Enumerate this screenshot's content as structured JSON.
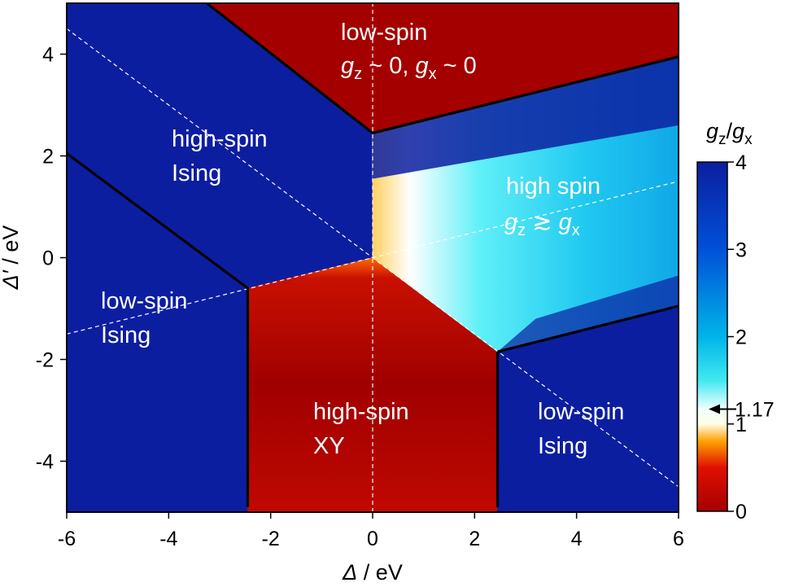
{
  "chart_data": {
    "type": "heatmap",
    "xlabel": {
      "symbol": "Δ",
      "unit": " / eV"
    },
    "ylabel": {
      "symbol": "Δ′",
      "unit": " / eV"
    },
    "xlim": [
      -6,
      6
    ],
    "ylim": [
      -5,
      5
    ],
    "x_ticks": [
      -6,
      -4,
      -2,
      0,
      2,
      4,
      6
    ],
    "x_tick_labels": [
      "-6",
      "-4",
      "-2",
      "0",
      "2",
      "4",
      "6"
    ],
    "y_ticks": [
      -4,
      -2,
      0,
      2,
      4
    ],
    "y_tick_labels": [
      "-4",
      "-2",
      "0",
      "2",
      "4"
    ],
    "colorbar": {
      "title": {
        "numerator": "g",
        "numerator_sub": "z",
        "slash": "/",
        "denominator": "g",
        "denominator_sub": "x"
      },
      "range": [
        0,
        4
      ],
      "ticks": [
        0,
        1,
        2,
        3,
        4
      ],
      "tick_labels": [
        "0",
        "1",
        "2",
        "3",
        "4"
      ],
      "marker": {
        "value": 1.17,
        "label": "1.17"
      },
      "colors": [
        {
          "value": 0.0,
          "color": "#a50000"
        },
        {
          "value": 0.5,
          "color": "#e01000"
        },
        {
          "value": 0.8,
          "color": "#ffa000"
        },
        {
          "value": 1.0,
          "color": "#ffffe6"
        },
        {
          "value": 1.17,
          "color": "#f0ffff"
        },
        {
          "value": 1.5,
          "color": "#40e8f0"
        },
        {
          "value": 2.0,
          "color": "#00b4e8"
        },
        {
          "value": 3.0,
          "color": "#0050d8"
        },
        {
          "value": 4.0,
          "color": "#0c1ea0"
        }
      ]
    },
    "dashed_guides": [
      {
        "from": [
          0,
          -5
        ],
        "to": [
          0,
          5
        ]
      },
      {
        "from": [
          -6,
          4.5
        ],
        "to": [
          6,
          -4.5
        ]
      },
      {
        "from": [
          -6,
          -1.5
        ],
        "to": [
          6,
          1.5
        ]
      }
    ],
    "phase_boundaries": [
      [
        [
          -3.25,
          5
        ],
        [
          0,
          2.45
        ],
        [
          6,
          3.95
        ]
      ],
      [
        [
          -6,
          2.05
        ],
        [
          -2.45,
          -0.6
        ],
        [
          -2.45,
          -4.9
        ]
      ],
      [
        [
          2.45,
          -1.85
        ],
        [
          6,
          -0.95
        ]
      ],
      [
        [
          2.45,
          -1.85
        ],
        [
          2.45,
          -4.9
        ]
      ]
    ],
    "regions": [
      {
        "name": "low-spin top",
        "g_ratio": null,
        "color": "#a50000",
        "polygon": [
          [
            -3.25,
            5
          ],
          [
            6,
            5
          ],
          [
            6,
            3.95
          ],
          [
            0,
            2.45
          ]
        ]
      },
      {
        "name": "high-spin Ising",
        "g_ratio": 4,
        "color": "#0c1ea0",
        "polygon": [
          [
            -6,
            5
          ],
          [
            -3.25,
            5
          ],
          [
            0,
            2.45
          ],
          [
            0,
            0
          ],
          [
            -2.45,
            -0.6
          ],
          [
            -6,
            2.05
          ]
        ]
      },
      {
        "name": "low-spin Ising left",
        "g_ratio": 4,
        "color": "#0c1ea0",
        "polygon": [
          [
            -6,
            2.05
          ],
          [
            -2.45,
            -0.6
          ],
          [
            -2.45,
            -5
          ],
          [
            -6,
            -5
          ]
        ]
      },
      {
        "name": "high-spin XY",
        "g_ratio": 0.05,
        "color": "#b00400",
        "polygon": [
          [
            -2.45,
            -0.6
          ],
          [
            0,
            0
          ],
          [
            2.45,
            -1.85
          ],
          [
            2.45,
            -5
          ],
          [
            -2.45,
            -5
          ]
        ]
      },
      {
        "name": "low-spin Ising right",
        "g_ratio": 4,
        "color": "#0c1ea0",
        "polygon": [
          [
            2.45,
            -1.85
          ],
          [
            6,
            -0.95
          ],
          [
            6,
            -5
          ],
          [
            2.45,
            -5
          ]
        ]
      },
      {
        "name": "high spin gz>gx",
        "g_ratio": 1.5,
        "color": "#40e8f0",
        "polygon": [
          [
            0,
            2.45
          ],
          [
            6,
            3.95
          ],
          [
            6,
            -0.95
          ],
          [
            2.45,
            -1.85
          ],
          [
            0,
            0
          ]
        ]
      }
    ],
    "labels": {
      "low_spin_top": {
        "line1": "low-spin",
        "line2_parts": [
          "g",
          "z",
          " ~ 0, ",
          "g",
          "x",
          " ~ 0"
        ]
      },
      "high_spin_ising": [
        "high-spin",
        "Ising"
      ],
      "high_spin_gz": {
        "line1": "high spin",
        "line2_parts": [
          "g",
          "z",
          " ≳ ",
          "g",
          "x"
        ]
      },
      "low_spin_ising_left": [
        "low-spin",
        "Ising"
      ],
      "high_spin_xy": [
        "high-spin",
        "XY"
      ],
      "low_spin_ising_right": [
        "low-spin",
        "Ising"
      ]
    }
  }
}
